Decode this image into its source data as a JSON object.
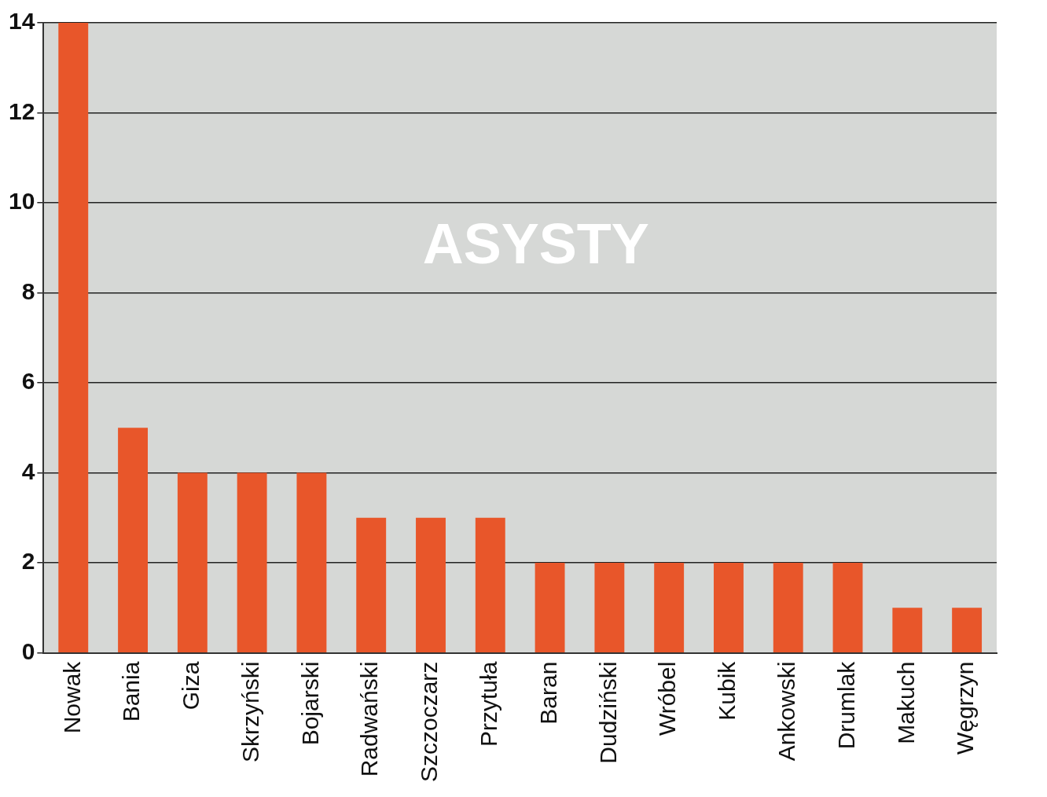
{
  "chart_data": {
    "type": "bar",
    "title": "ASYSTY",
    "categories": [
      "Nowak",
      "Bania",
      "Giza",
      "Skrzyński",
      "Bojarski",
      "Radwański",
      "Szczoczarz",
      "Przytuła",
      "Baran",
      "Dudziński",
      "Wróbel",
      "Kubik",
      "Ankowski",
      "Drumlak",
      "Makuch",
      "Węgrzyn"
    ],
    "values": [
      14,
      5,
      4,
      4,
      4,
      3,
      3,
      3,
      2,
      2,
      2,
      2,
      2,
      2,
      1,
      1
    ],
    "color": "#e8562a",
    "ylim": [
      0,
      14
    ],
    "yticks": [
      0,
      2,
      4,
      6,
      8,
      10,
      12,
      14
    ],
    "grid": "y",
    "legend": false
  }
}
